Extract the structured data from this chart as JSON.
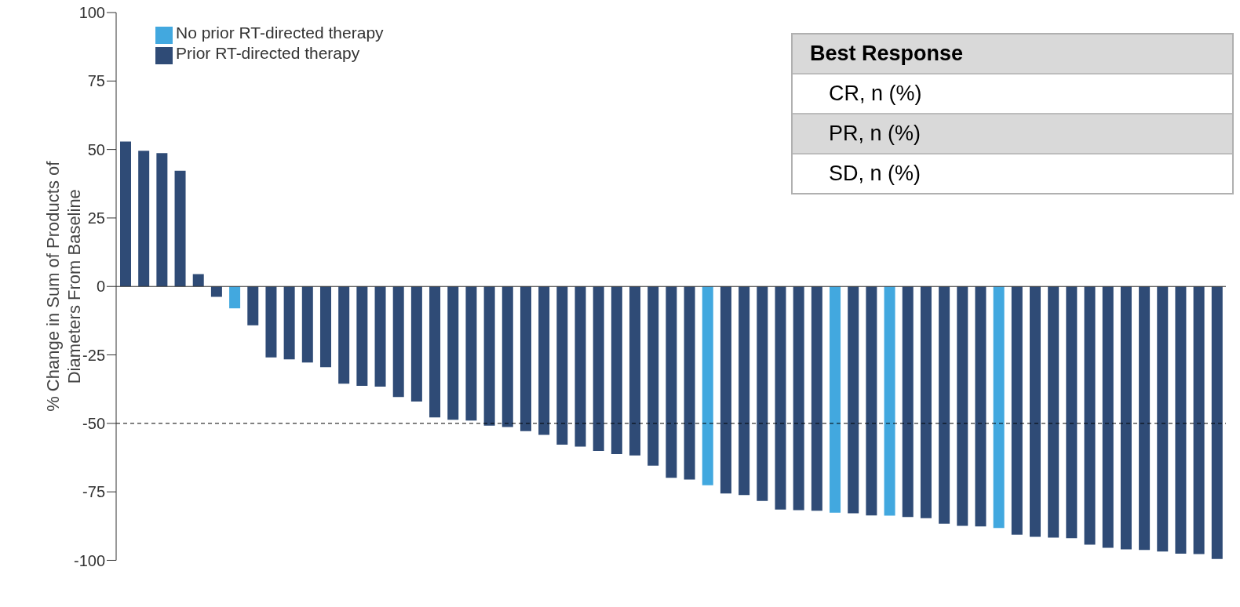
{
  "chart_data": {
    "type": "bar",
    "ylabel": "% Change in Sum of Products of\nDiameters From Baseline",
    "categories": [
      null,
      null,
      null,
      null,
      null,
      null,
      null,
      null,
      null,
      null,
      null,
      null,
      null,
      null,
      null,
      null,
      null,
      null,
      null,
      null,
      null,
      null,
      null,
      null,
      null,
      null,
      null,
      null,
      null,
      null,
      null,
      null,
      null,
      null,
      null,
      null,
      null,
      null,
      null,
      null,
      null,
      null,
      null,
      null,
      null,
      null,
      null,
      null,
      null,
      null,
      null,
      null,
      null,
      null,
      null,
      null,
      null,
      null,
      null,
      null,
      null
    ],
    "stacked": true,
    "series": [
      {
        "name": "No prior RT-directed therapy",
        "color": "#42a8df",
        "values": [
          null,
          null,
          null,
          null,
          null,
          null,
          -8.0,
          null,
          null,
          null,
          null,
          null,
          null,
          null,
          null,
          null,
          null,
          null,
          null,
          null,
          null,
          null,
          null,
          null,
          null,
          null,
          null,
          null,
          null,
          null,
          null,
          null,
          -72.6,
          null,
          null,
          null,
          null,
          null,
          null,
          -82.6,
          null,
          null,
          -83.7,
          null,
          null,
          null,
          null,
          null,
          -88.2,
          null,
          null,
          null,
          null,
          null,
          null,
          null,
          null,
          null,
          null,
          null,
          null
        ]
      },
      {
        "name": "Prior RT-directed therapy",
        "color": "#2f4b76",
        "values": [
          52.9,
          49.5,
          48.7,
          42.2,
          4.5,
          -3.8,
          null,
          -14.2,
          -25.9,
          -26.6,
          -27.8,
          -29.5,
          -35.5,
          -36.3,
          -36.6,
          -40.4,
          -42.0,
          -47.8,
          -48.7,
          -49.0,
          -50.8,
          -51.3,
          -52.8,
          -54.2,
          -57.8,
          -58.5,
          -60.1,
          -61.2,
          -61.7,
          -65.4,
          -69.9,
          -70.5,
          null,
          -75.6,
          -76.2,
          -78.3,
          -81.5,
          -81.7,
          -81.9,
          null,
          -82.8,
          -83.6,
          null,
          -84.2,
          -84.6,
          -86.6,
          -87.4,
          -87.6,
          null,
          -90.6,
          -91.4,
          -91.7,
          -91.9,
          -94.3,
          -95.4,
          -96.0,
          -96.2,
          -96.8,
          -97.6,
          -97.7,
          -99.5
        ]
      }
    ],
    "ylim": [
      -100,
      100
    ],
    "yticks": [
      -100,
      -75,
      -50,
      -25,
      0,
      25,
      50,
      75,
      100
    ],
    "ref_lines": [
      {
        "axis": "y",
        "value": -50,
        "line_style": "dashed",
        "color": "#000000"
      }
    ],
    "legend": "top left",
    "annotations": [
      "Best Response",
      "CR, n (%)",
      "PR, n (%)",
      "SD, n (%)"
    ]
  }
}
